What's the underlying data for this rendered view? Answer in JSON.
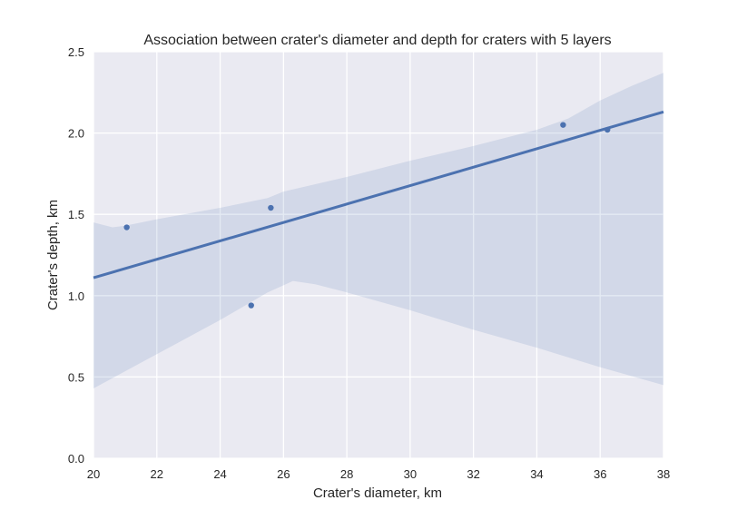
{
  "chart_data": {
    "type": "scatter",
    "title": "Association between crater's diameter and depth for craters with 5 layers",
    "xlabel": "Crater's diameter, km",
    "ylabel": "Crater's depth, km",
    "xlim": [
      20,
      38
    ],
    "ylim": [
      0.0,
      2.5
    ],
    "xticks": [
      "20",
      "22",
      "24",
      "26",
      "28",
      "30",
      "32",
      "34",
      "36",
      "38"
    ],
    "yticks": [
      "0.0",
      "0.5",
      "1.0",
      "1.5",
      "2.0",
      "2.5"
    ],
    "grid": true,
    "points": [
      {
        "x": 21.05,
        "y": 1.42
      },
      {
        "x": 24.98,
        "y": 0.94
      },
      {
        "x": 25.6,
        "y": 1.54
      },
      {
        "x": 34.83,
        "y": 2.05
      },
      {
        "x": 36.23,
        "y": 2.02
      }
    ],
    "regression_line": [
      {
        "x": 20,
        "y": 1.11
      },
      {
        "x": 38,
        "y": 2.13
      }
    ],
    "confidence_band": {
      "upper": [
        {
          "x": 20.0,
          "y": 1.45
        },
        {
          "x": 20.6,
          "y": 1.42
        },
        {
          "x": 21.0,
          "y": 1.43
        },
        {
          "x": 22.0,
          "y": 1.47
        },
        {
          "x": 24.0,
          "y": 1.54
        },
        {
          "x": 25.5,
          "y": 1.6
        },
        {
          "x": 26.0,
          "y": 1.64
        },
        {
          "x": 28.0,
          "y": 1.73
        },
        {
          "x": 30.0,
          "y": 1.83
        },
        {
          "x": 32.0,
          "y": 1.92
        },
        {
          "x": 34.0,
          "y": 2.02
        },
        {
          "x": 35.0,
          "y": 2.09
        },
        {
          "x": 36.0,
          "y": 2.2
        },
        {
          "x": 37.0,
          "y": 2.29
        },
        {
          "x": 38.0,
          "y": 2.37
        }
      ],
      "lower": [
        {
          "x": 20.0,
          "y": 0.43
        },
        {
          "x": 22.0,
          "y": 0.64
        },
        {
          "x": 24.0,
          "y": 0.85
        },
        {
          "x": 25.5,
          "y": 1.02
        },
        {
          "x": 26.3,
          "y": 1.09
        },
        {
          "x": 27.0,
          "y": 1.07
        },
        {
          "x": 28.0,
          "y": 1.02
        },
        {
          "x": 30.0,
          "y": 0.91
        },
        {
          "x": 32.0,
          "y": 0.79
        },
        {
          "x": 34.0,
          "y": 0.68
        },
        {
          "x": 36.0,
          "y": 0.56
        },
        {
          "x": 38.0,
          "y": 0.45
        }
      ]
    },
    "colors": {
      "background": "#eaeaf2",
      "grid": "#ffffff",
      "line": "#4c72b0",
      "band": "#4c72b0",
      "text": "#262626"
    }
  }
}
